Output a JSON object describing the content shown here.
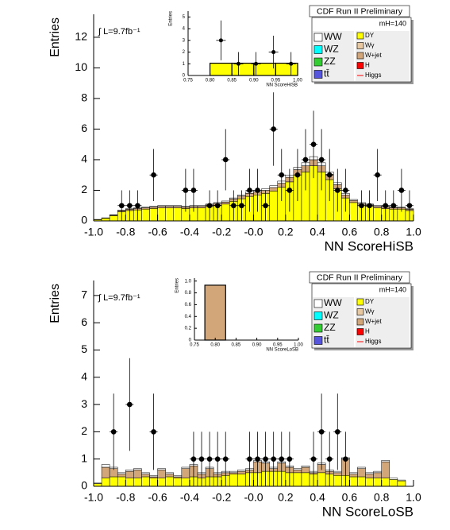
{
  "chart_data": [
    {
      "type": "stacked_histogram",
      "title": "CDF Run II Preliminary",
      "xlabel": "NN ScoreHiSB",
      "ylabel": "Entries",
      "annotations": [
        "∫ L=9.7fb⁻¹",
        "mH=140"
      ],
      "xlim": [
        -1,
        1
      ],
      "ylim": [
        0,
        13.5
      ],
      "xticks": [
        {
          "value": -1,
          "label": "-1.0"
        },
        -0.8,
        -0.6,
        -0.4,
        -0.2,
        {
          "value": 0,
          "label": "-0.0"
        },
        0.2,
        0.4,
        0.6,
        0.8,
        {
          "value": 1,
          "label": "1.0"
        }
      ],
      "yticks": [
        0,
        2,
        4,
        6,
        8,
        10,
        12
      ],
      "bins": [
        -1,
        -0.95,
        -0.9,
        -0.85,
        -0.8,
        -0.75,
        -0.7,
        -0.65,
        -0.6,
        -0.55,
        -0.5,
        -0.45,
        -0.4,
        -0.35,
        -0.3,
        -0.25,
        -0.2,
        -0.15,
        -0.1,
        -0.05,
        0,
        0.05,
        0.1,
        0.15,
        0.2,
        0.25,
        0.3,
        0.35,
        0.4,
        0.45,
        0.5,
        0.55,
        0.6,
        0.65,
        0.7,
        0.75,
        0.8,
        0.85,
        0.9,
        0.95,
        1
      ],
      "series": [
        {
          "name": "DY",
          "color": "#ffff00",
          "values": [
            0.08,
            0.17,
            0.34,
            0.6,
            0.68,
            0.72,
            0.77,
            0.81,
            0.85,
            0.85,
            0.85,
            0.81,
            0.85,
            0.85,
            0.94,
            1.02,
            1.1,
            1.28,
            1.45,
            1.6,
            1.7,
            1.8,
            1.95,
            2.2,
            2.55,
            3.0,
            3.2,
            3.6,
            3.2,
            2.7,
            2.1,
            1.5,
            1.2,
            1.0,
            0.95,
            0.85,
            0.8,
            0.77,
            0.77,
            0.68
          ]
        },
        {
          "name": "Wγ",
          "color": "#e8c8a0"
        },
        {
          "name": "W+jet",
          "color": "#d2a679",
          "values": [
            0.01,
            0.02,
            0.04,
            0.07,
            0.08,
            0.09,
            0.09,
            0.1,
            0.1,
            0.1,
            0.1,
            0.1,
            0.1,
            0.1,
            0.11,
            0.12,
            0.13,
            0.15,
            0.17,
            0.2,
            0.2,
            0.2,
            0.23,
            0.26,
            0.3,
            0.35,
            0.4,
            0.4,
            0.4,
            0.35,
            0.27,
            0.2,
            0.14,
            0.13,
            0.1,
            0.1,
            0.1,
            0.09,
            0.09,
            0.08
          ]
        },
        {
          "name": "H",
          "color": "#ff0000"
        },
        {
          "name": "Higgs",
          "color": "#ff0000",
          "style": "line"
        },
        {
          "name": "WW",
          "color": "#ffffff",
          "values": [
            0.01,
            0.01,
            0.02,
            0.03,
            0.04,
            0.04,
            0.04,
            0.04,
            0.05,
            0.05,
            0.05,
            0.04,
            0.05,
            0.05,
            0.05,
            0.06,
            0.07,
            0.07,
            0.08,
            0.1,
            0.1,
            0.1,
            0.12,
            0.14,
            0.15,
            0.15,
            0.2,
            0.2,
            0.2,
            0.15,
            0.13,
            0.1,
            0.06,
            0.07,
            0.05,
            0.05,
            0.05,
            0.04,
            0.04,
            0.04
          ]
        },
        {
          "name": "WZ",
          "color": "#00ffff"
        },
        {
          "name": "ZZ",
          "color": "#33cc33"
        },
        {
          "name": "tt̄",
          "color": "#5555dd"
        }
      ],
      "points": {
        "x": [
          -0.825,
          -0.775,
          -0.725,
          -0.625,
          -0.425,
          -0.375,
          -0.275,
          -0.225,
          -0.175,
          -0.125,
          -0.075,
          -0.025,
          0.025,
          0.075,
          0.125,
          0.175,
          0.225,
          0.275,
          0.325,
          0.375,
          0.425,
          0.475,
          0.525,
          0.575,
          0.675,
          0.725,
          0.775,
          0.825,
          0.875,
          0.925,
          0.975
        ],
        "values": [
          1,
          1,
          1,
          3,
          2,
          2,
          1,
          1,
          4,
          1,
          1,
          2,
          2,
          1,
          6,
          3,
          2,
          3,
          4,
          5,
          4,
          3,
          2,
          2,
          1,
          1,
          3,
          1,
          1,
          2,
          1
        ],
        "errors": [
          1,
          1,
          1,
          1.7,
          1.4,
          1.4,
          1,
          1,
          2,
          1,
          1,
          1.4,
          1.4,
          1,
          2.4,
          1.7,
          1.4,
          1.7,
          2,
          2.2,
          2,
          1.7,
          1.4,
          1.4,
          1,
          1,
          1.7,
          1,
          1,
          1.4,
          1
        ]
      }
    },
    {
      "type": "histogram",
      "xlabel": "NN ScoreHiSB",
      "ylabel": "Entries",
      "xlim": [
        0.75,
        1
      ],
      "ylim": [
        0,
        5.5
      ],
      "xticks": [
        0.75,
        {
          "value": 0.8,
          "label": "0.80"
        },
        0.85,
        {
          "value": 0.9,
          "label": "0.90"
        },
        0.95,
        {
          "value": 1,
          "label": "1.00"
        }
      ],
      "yticks": [
        0,
        1,
        2,
        3,
        4,
        5
      ],
      "bins": [
        0.8,
        0.85,
        0.9,
        0.95,
        1
      ],
      "values": [
        1.05,
        1.05,
        1.05,
        1.05
      ],
      "color": "#ffff00",
      "points": {
        "x": [
          0.825,
          0.865,
          0.905,
          0.945,
          0.985
        ],
        "values": [
          3,
          1,
          1,
          2,
          1
        ],
        "errors": [
          1.7,
          1,
          1,
          1.4,
          1
        ]
      }
    },
    {
      "type": "stacked_histogram",
      "title": "CDF Run II Preliminary",
      "xlabel": "NN ScoreLoSB",
      "ylabel": "Entries",
      "annotations": [
        "∫ L=9.7fb⁻¹",
        "mH=140"
      ],
      "xlim": [
        -1,
        1
      ],
      "ylim": [
        0,
        7.55
      ],
      "xticks": [
        {
          "value": -1,
          "label": "-1.0"
        },
        -0.8,
        -0.6,
        -0.4,
        -0.2,
        {
          "value": 0,
          "label": "-0.0"
        },
        0.2,
        0.4,
        0.6,
        0.8,
        {
          "value": 1,
          "label": "1.0"
        }
      ],
      "yticks": [
        0,
        1,
        2,
        3,
        4,
        5,
        6,
        7
      ],
      "bins": [
        -1,
        -0.95,
        -0.9,
        -0.85,
        -0.8,
        -0.75,
        -0.7,
        -0.65,
        -0.6,
        -0.55,
        -0.5,
        -0.45,
        -0.4,
        -0.35,
        -0.3,
        -0.25,
        -0.2,
        -0.15,
        -0.1,
        -0.05,
        0,
        0.05,
        0.1,
        0.15,
        0.2,
        0.25,
        0.3,
        0.35,
        0.4,
        0.45,
        0.5,
        0.55,
        0.6,
        0.65,
        0.7,
        0.75,
        0.8,
        0.85,
        0.9,
        0.95,
        1
      ],
      "series": [
        {
          "name": "DY",
          "color": "#ffff00",
          "values": [
            0.1,
            0.3,
            0.35,
            0.35,
            0.3,
            0.3,
            0.35,
            0.3,
            0.3,
            0.35,
            0.3,
            0.3,
            0.35,
            0.3,
            0.35,
            0.35,
            0.4,
            0.45,
            0.45,
            0.5,
            0.5,
            0.55,
            0.55,
            0.55,
            0.5,
            0.5,
            0.5,
            0.45,
            0.5,
            0.45,
            0.4,
            0.4,
            0.35,
            0.35,
            0.3,
            0.3,
            0.3,
            0.25,
            0.2,
            0
          ]
        },
        {
          "name": "Wγ",
          "color": "#e8c8a0"
        },
        {
          "name": "W+jet",
          "color": "#d2a679",
          "values": [
            0,
            0.4,
            0.3,
            0.1,
            0.25,
            0.3,
            0.1,
            0.05,
            0.3,
            0.1,
            0.05,
            0.35,
            0.4,
            0.15,
            0.3,
            0.1,
            0.1,
            0.05,
            0.1,
            0.1,
            0.4,
            0.3,
            0.1,
            0.3,
            0.2,
            0.1,
            0.2,
            0.05,
            0.3,
            0.1,
            0.1,
            0.6,
            0.1,
            0.3,
            0.15,
            0.2,
            0.6,
            0,
            0,
            0
          ]
        },
        {
          "name": "H",
          "color": "#ff0000"
        },
        {
          "name": "Higgs",
          "color": "#ff0000",
          "style": "line"
        },
        {
          "name": "WW",
          "color": "#ffffff",
          "values": [
            0.02,
            0.1,
            0.05,
            0.05,
            0.05,
            0.05,
            0.05,
            0.05,
            0.05,
            0.05,
            0.05,
            0.05,
            0.05,
            0.05,
            0.05,
            0.05,
            0.05,
            0.05,
            0.05,
            0.05,
            0.05,
            0.05,
            0.05,
            0.05,
            0.05,
            0.05,
            0.05,
            0.05,
            0.05,
            0.05,
            0.05,
            0.05,
            0.05,
            0.05,
            0.05,
            0.05,
            0.05,
            0.05,
            0.03,
            0
          ]
        },
        {
          "name": "WZ",
          "color": "#00ffff"
        },
        {
          "name": "ZZ",
          "color": "#33cc33"
        },
        {
          "name": "tt̄",
          "color": "#5555dd"
        }
      ],
      "points": {
        "x": [
          -0.875,
          -0.775,
          -0.625,
          -0.375,
          -0.325,
          -0.275,
          -0.225,
          -0.175,
          -0.025,
          0.025,
          0.075,
          0.125,
          0.175,
          0.225,
          0.375,
          0.425,
          0.475,
          0.525,
          0.575
        ],
        "values": [
          2,
          3,
          2,
          1,
          1,
          1,
          1,
          1,
          1,
          1,
          1,
          1,
          1,
          1,
          1,
          2,
          1,
          2,
          1
        ],
        "errors": [
          1.4,
          1.7,
          1.4,
          1,
          1,
          1,
          1,
          1,
          1,
          1,
          1,
          1,
          1,
          1,
          1,
          1.4,
          1,
          1.4,
          1
        ]
      }
    },
    {
      "type": "histogram",
      "xlabel": "NN ScoreLoSB",
      "ylabel": "Entries",
      "xlim": [
        0.75,
        1
      ],
      "ylim": [
        0,
        1.05
      ],
      "xticks": [
        0.75,
        {
          "value": 0.8,
          "label": "0.80"
        },
        0.85,
        {
          "value": 0.9,
          "label": "0.90"
        },
        0.95,
        {
          "value": 1,
          "label": "1.00"
        }
      ],
      "yticks": [
        0,
        0.2,
        0.4,
        0.6,
        0.8,
        {
          "value": 1,
          "label": "1.0"
        }
      ],
      "bins": [
        0.775,
        0.825
      ],
      "values": [
        0.93
      ],
      "color": "#d2a679"
    }
  ]
}
